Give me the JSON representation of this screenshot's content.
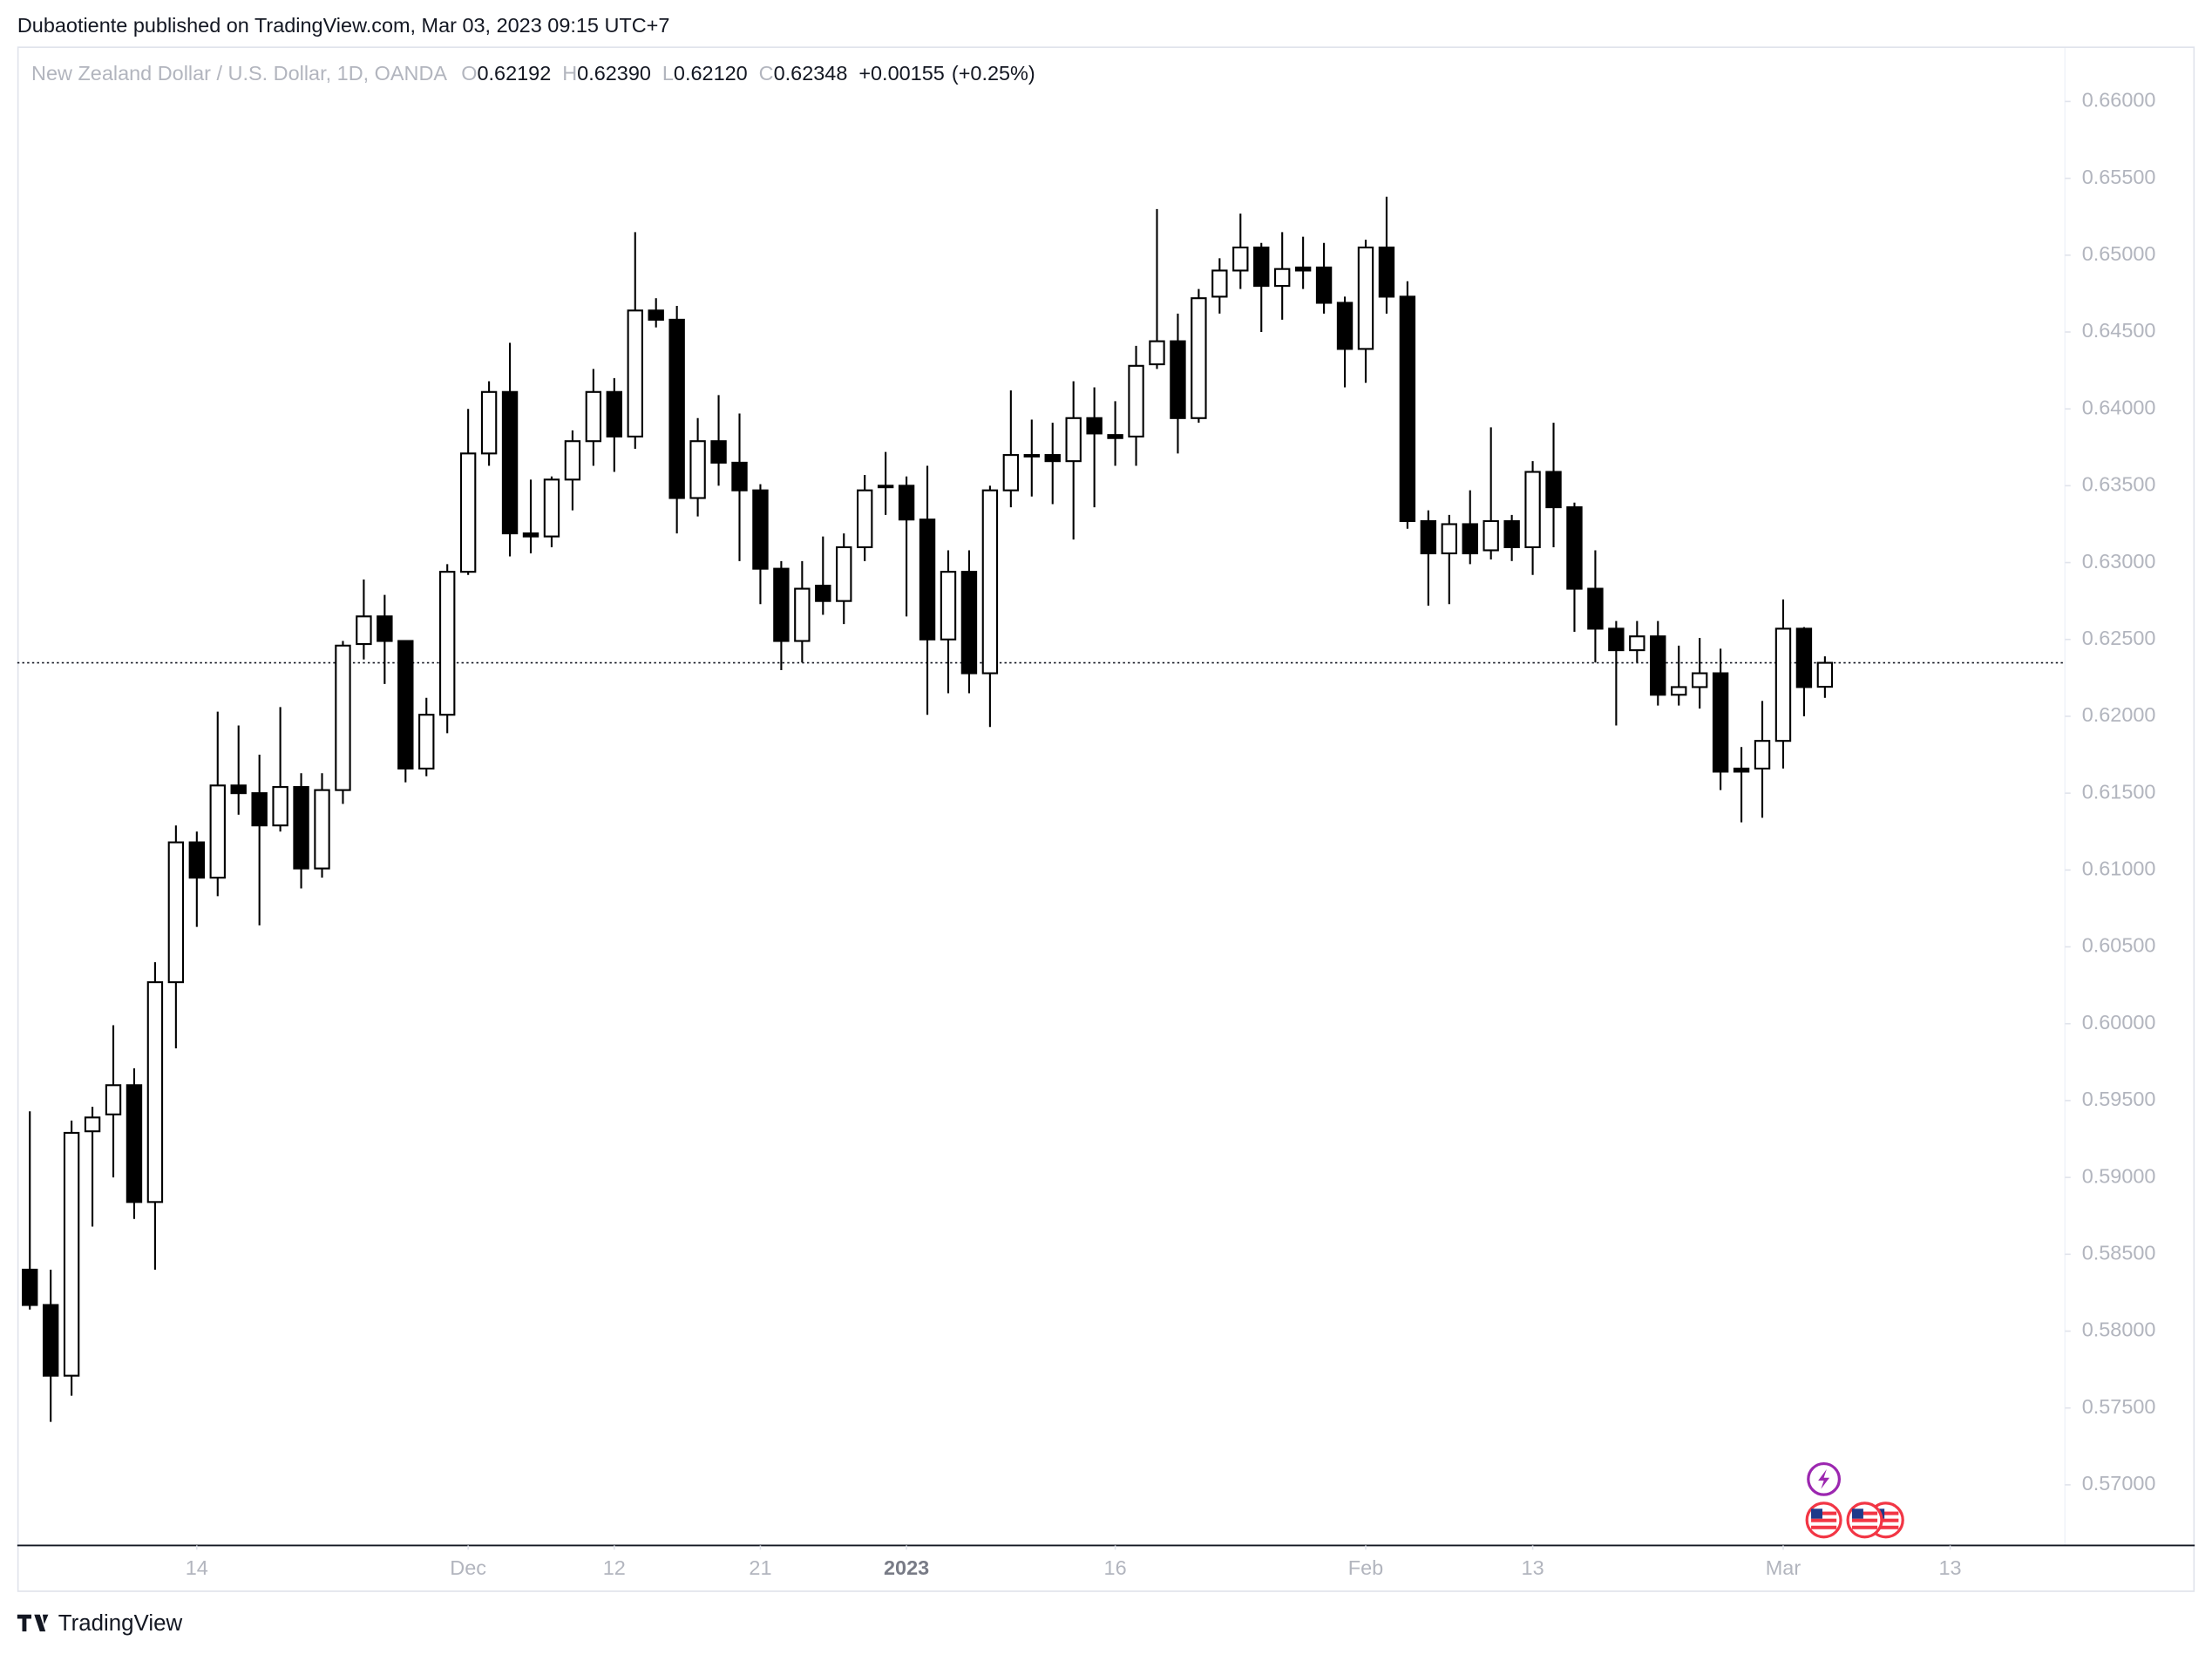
{
  "published_line": "Dubaotiente published on TradingView.com, Mar 03, 2023 09:15 UTC+7",
  "brand": "TradingView",
  "chart_data": {
    "type": "candlestick",
    "title": "New Zealand Dollar / U.S. Dollar, 1D, OANDA",
    "ohlc_header": [
      {
        "label": "O",
        "value": 0.62192
      },
      {
        "label": "H",
        "value": 0.6239
      },
      {
        "label": "L",
        "value": 0.6212
      },
      {
        "label": "C",
        "value": 0.62348
      }
    ],
    "ohlc_header_labels": [
      "0.62192",
      "0.62390",
      "0.62120",
      "0.62348"
    ],
    "change": {
      "value": 0.00155,
      "label": "+0.00155"
    },
    "change_pct": {
      "value": 0.25,
      "label": "(+0.25%)"
    },
    "last_price": 0.62348,
    "up_color": "#ffffff",
    "down_color": "#000000",
    "open": [
      0.584,
      0.5817,
      0.5771,
      0.593,
      0.5941,
      0.596,
      0.5884,
      0.6027,
      0.6118,
      0.6095,
      0.6155,
      0.615,
      0.6129,
      0.6154,
      0.6101,
      0.6152,
      0.6247,
      0.6265,
      0.6249,
      0.6166,
      0.6201,
      0.6294,
      0.6371,
      0.6411,
      0.6319,
      0.6317,
      0.6354,
      0.6379,
      0.6411,
      0.6382,
      0.6464,
      0.6458,
      0.6342,
      0.6379,
      0.6365,
      0.6347,
      0.6296,
      0.6249,
      0.6285,
      0.6275,
      0.631,
      0.6349,
      0.635,
      0.6328,
      0.625,
      0.6294,
      0.6228,
      0.6347,
      0.6369,
      0.637,
      0.6366,
      0.6394,
      0.6383,
      0.6382,
      0.6429,
      0.6444,
      0.6394,
      0.6473,
      0.649,
      0.6505,
      0.648,
      0.6492,
      0.6492,
      0.6469,
      0.6439,
      0.6505,
      0.6473,
      0.6327,
      0.6306,
      0.6325,
      0.6308,
      0.6327,
      0.631,
      0.6359,
      0.6336,
      0.6283,
      0.6257,
      0.6243,
      0.6252,
      0.6214,
      0.6219,
      0.6228,
      0.6166,
      0.6166,
      0.6184,
      0.6257,
      0.62192
    ],
    "high": [
      0.5943,
      0.584,
      0.5937,
      0.5946,
      0.5999,
      0.5971,
      0.604,
      0.6129,
      0.6125,
      0.6203,
      0.6194,
      0.6175,
      0.6206,
      0.6163,
      0.6163,
      0.6249,
      0.6289,
      0.6279,
      0.6249,
      0.6212,
      0.6299,
      0.64,
      0.6418,
      0.6443,
      0.6354,
      0.6356,
      0.6386,
      0.6426,
      0.642,
      0.6515,
      0.6472,
      0.6467,
      0.6394,
      0.6409,
      0.6397,
      0.6351,
      0.6301,
      0.6301,
      0.6317,
      0.6319,
      0.6357,
      0.6372,
      0.6356,
      0.6363,
      0.6308,
      0.6308,
      0.635,
      0.6412,
      0.6393,
      0.6391,
      0.6418,
      0.6414,
      0.6405,
      0.6441,
      0.653,
      0.6462,
      0.6478,
      0.6498,
      0.6527,
      0.6508,
      0.6515,
      0.6512,
      0.6508,
      0.6473,
      0.651,
      0.6538,
      0.6483,
      0.6334,
      0.6331,
      0.6347,
      0.6388,
      0.6331,
      0.6366,
      0.6391,
      0.6339,
      0.6308,
      0.6262,
      0.6262,
      0.6262,
      0.6246,
      0.6251,
      0.6244,
      0.618,
      0.621,
      0.6276,
      0.6258,
      0.6239
    ],
    "low": [
      0.5814,
      0.5741,
      0.5758,
      0.5868,
      0.59,
      0.5873,
      0.584,
      0.5984,
      0.6063,
      0.6083,
      0.6136,
      0.6064,
      0.6125,
      0.6088,
      0.6095,
      0.6143,
      0.6237,
      0.6221,
      0.6157,
      0.6161,
      0.6189,
      0.6292,
      0.6363,
      0.6304,
      0.6306,
      0.631,
      0.6334,
      0.6363,
      0.6359,
      0.6374,
      0.6453,
      0.6319,
      0.633,
      0.635,
      0.6301,
      0.6273,
      0.623,
      0.6235,
      0.6266,
      0.626,
      0.6301,
      0.6331,
      0.6265,
      0.6201,
      0.6215,
      0.6215,
      0.6193,
      0.6336,
      0.6343,
      0.6338,
      0.6315,
      0.6336,
      0.6363,
      0.6363,
      0.6426,
      0.6371,
      0.6391,
      0.6462,
      0.6478,
      0.645,
      0.6458,
      0.6478,
      0.6462,
      0.6414,
      0.6417,
      0.6462,
      0.6322,
      0.6272,
      0.6273,
      0.6299,
      0.6302,
      0.6301,
      0.6292,
      0.631,
      0.6255,
      0.6235,
      0.6194,
      0.6235,
      0.6207,
      0.6207,
      0.6205,
      0.6152,
      0.6131,
      0.6134,
      0.6166,
      0.62,
      0.6212
    ],
    "close": [
      0.5817,
      0.5771,
      0.5929,
      0.5939,
      0.596,
      0.5884,
      0.6027,
      0.6118,
      0.6095,
      0.6155,
      0.615,
      0.6129,
      0.6154,
      0.6101,
      0.6152,
      0.6246,
      0.6265,
      0.6249,
      0.6166,
      0.6201,
      0.6294,
      0.6371,
      0.6411,
      0.6319,
      0.6317,
      0.6354,
      0.6379,
      0.6411,
      0.6382,
      0.6464,
      0.6458,
      0.6342,
      0.6379,
      0.6365,
      0.6347,
      0.6296,
      0.6249,
      0.6283,
      0.6275,
      0.631,
      0.6347,
      0.635,
      0.6328,
      0.625,
      0.6294,
      0.6228,
      0.6347,
      0.637,
      0.637,
      0.6366,
      0.6394,
      0.6384,
      0.6381,
      0.6428,
      0.6444,
      0.6394,
      0.6472,
      0.649,
      0.6505,
      0.648,
      0.6491,
      0.649,
      0.6469,
      0.6439,
      0.6505,
      0.6473,
      0.6327,
      0.6306,
      0.6325,
      0.6306,
      0.6327,
      0.631,
      0.6359,
      0.6336,
      0.6283,
      0.6257,
      0.6243,
      0.6252,
      0.6214,
      0.6219,
      0.6228,
      0.6164,
      0.6164,
      0.6184,
      0.6257,
      0.6219,
      0.62348
    ],
    "xlim": [
      -0.6,
      97.5
    ],
    "xticks": [
      {
        "value": 8,
        "label": "14"
      },
      {
        "value": 21,
        "label": "Dec"
      },
      {
        "value": 28,
        "label": "12"
      },
      {
        "value": 35,
        "label": "21"
      },
      {
        "value": 42,
        "label": "2023",
        "bold": true
      },
      {
        "value": 52,
        "label": "16"
      },
      {
        "value": 64,
        "label": "Feb"
      },
      {
        "value": 72,
        "label": "13"
      },
      {
        "value": 84,
        "label": "Mar"
      },
      {
        "value": 92,
        "label": "13"
      }
    ],
    "ylim": [
      0.56615,
      0.66339
    ],
    "yticks": [
      {
        "value": 0.57,
        "label": "0.57000"
      },
      {
        "value": 0.575,
        "label": "0.57500"
      },
      {
        "value": 0.58,
        "label": "0.58000"
      },
      {
        "value": 0.585,
        "label": "0.58500"
      },
      {
        "value": 0.59,
        "label": "0.59000"
      },
      {
        "value": 0.595,
        "label": "0.59500"
      },
      {
        "value": 0.6,
        "label": "0.60000"
      },
      {
        "value": 0.605,
        "label": "0.60500"
      },
      {
        "value": 0.61,
        "label": "0.61000"
      },
      {
        "value": 0.615,
        "label": "0.61500"
      },
      {
        "value": 0.62,
        "label": "0.62000"
      },
      {
        "value": 0.625,
        "label": "0.62500"
      },
      {
        "value": 0.63,
        "label": "0.63000"
      },
      {
        "value": 0.635,
        "label": "0.63500"
      },
      {
        "value": 0.64,
        "label": "0.64000"
      },
      {
        "value": 0.645,
        "label": "0.64500"
      },
      {
        "value": 0.65,
        "label": "0.65000"
      },
      {
        "value": 0.655,
        "label": "0.65500"
      },
      {
        "value": 0.66,
        "label": "0.66000"
      }
    ],
    "grid": false
  }
}
